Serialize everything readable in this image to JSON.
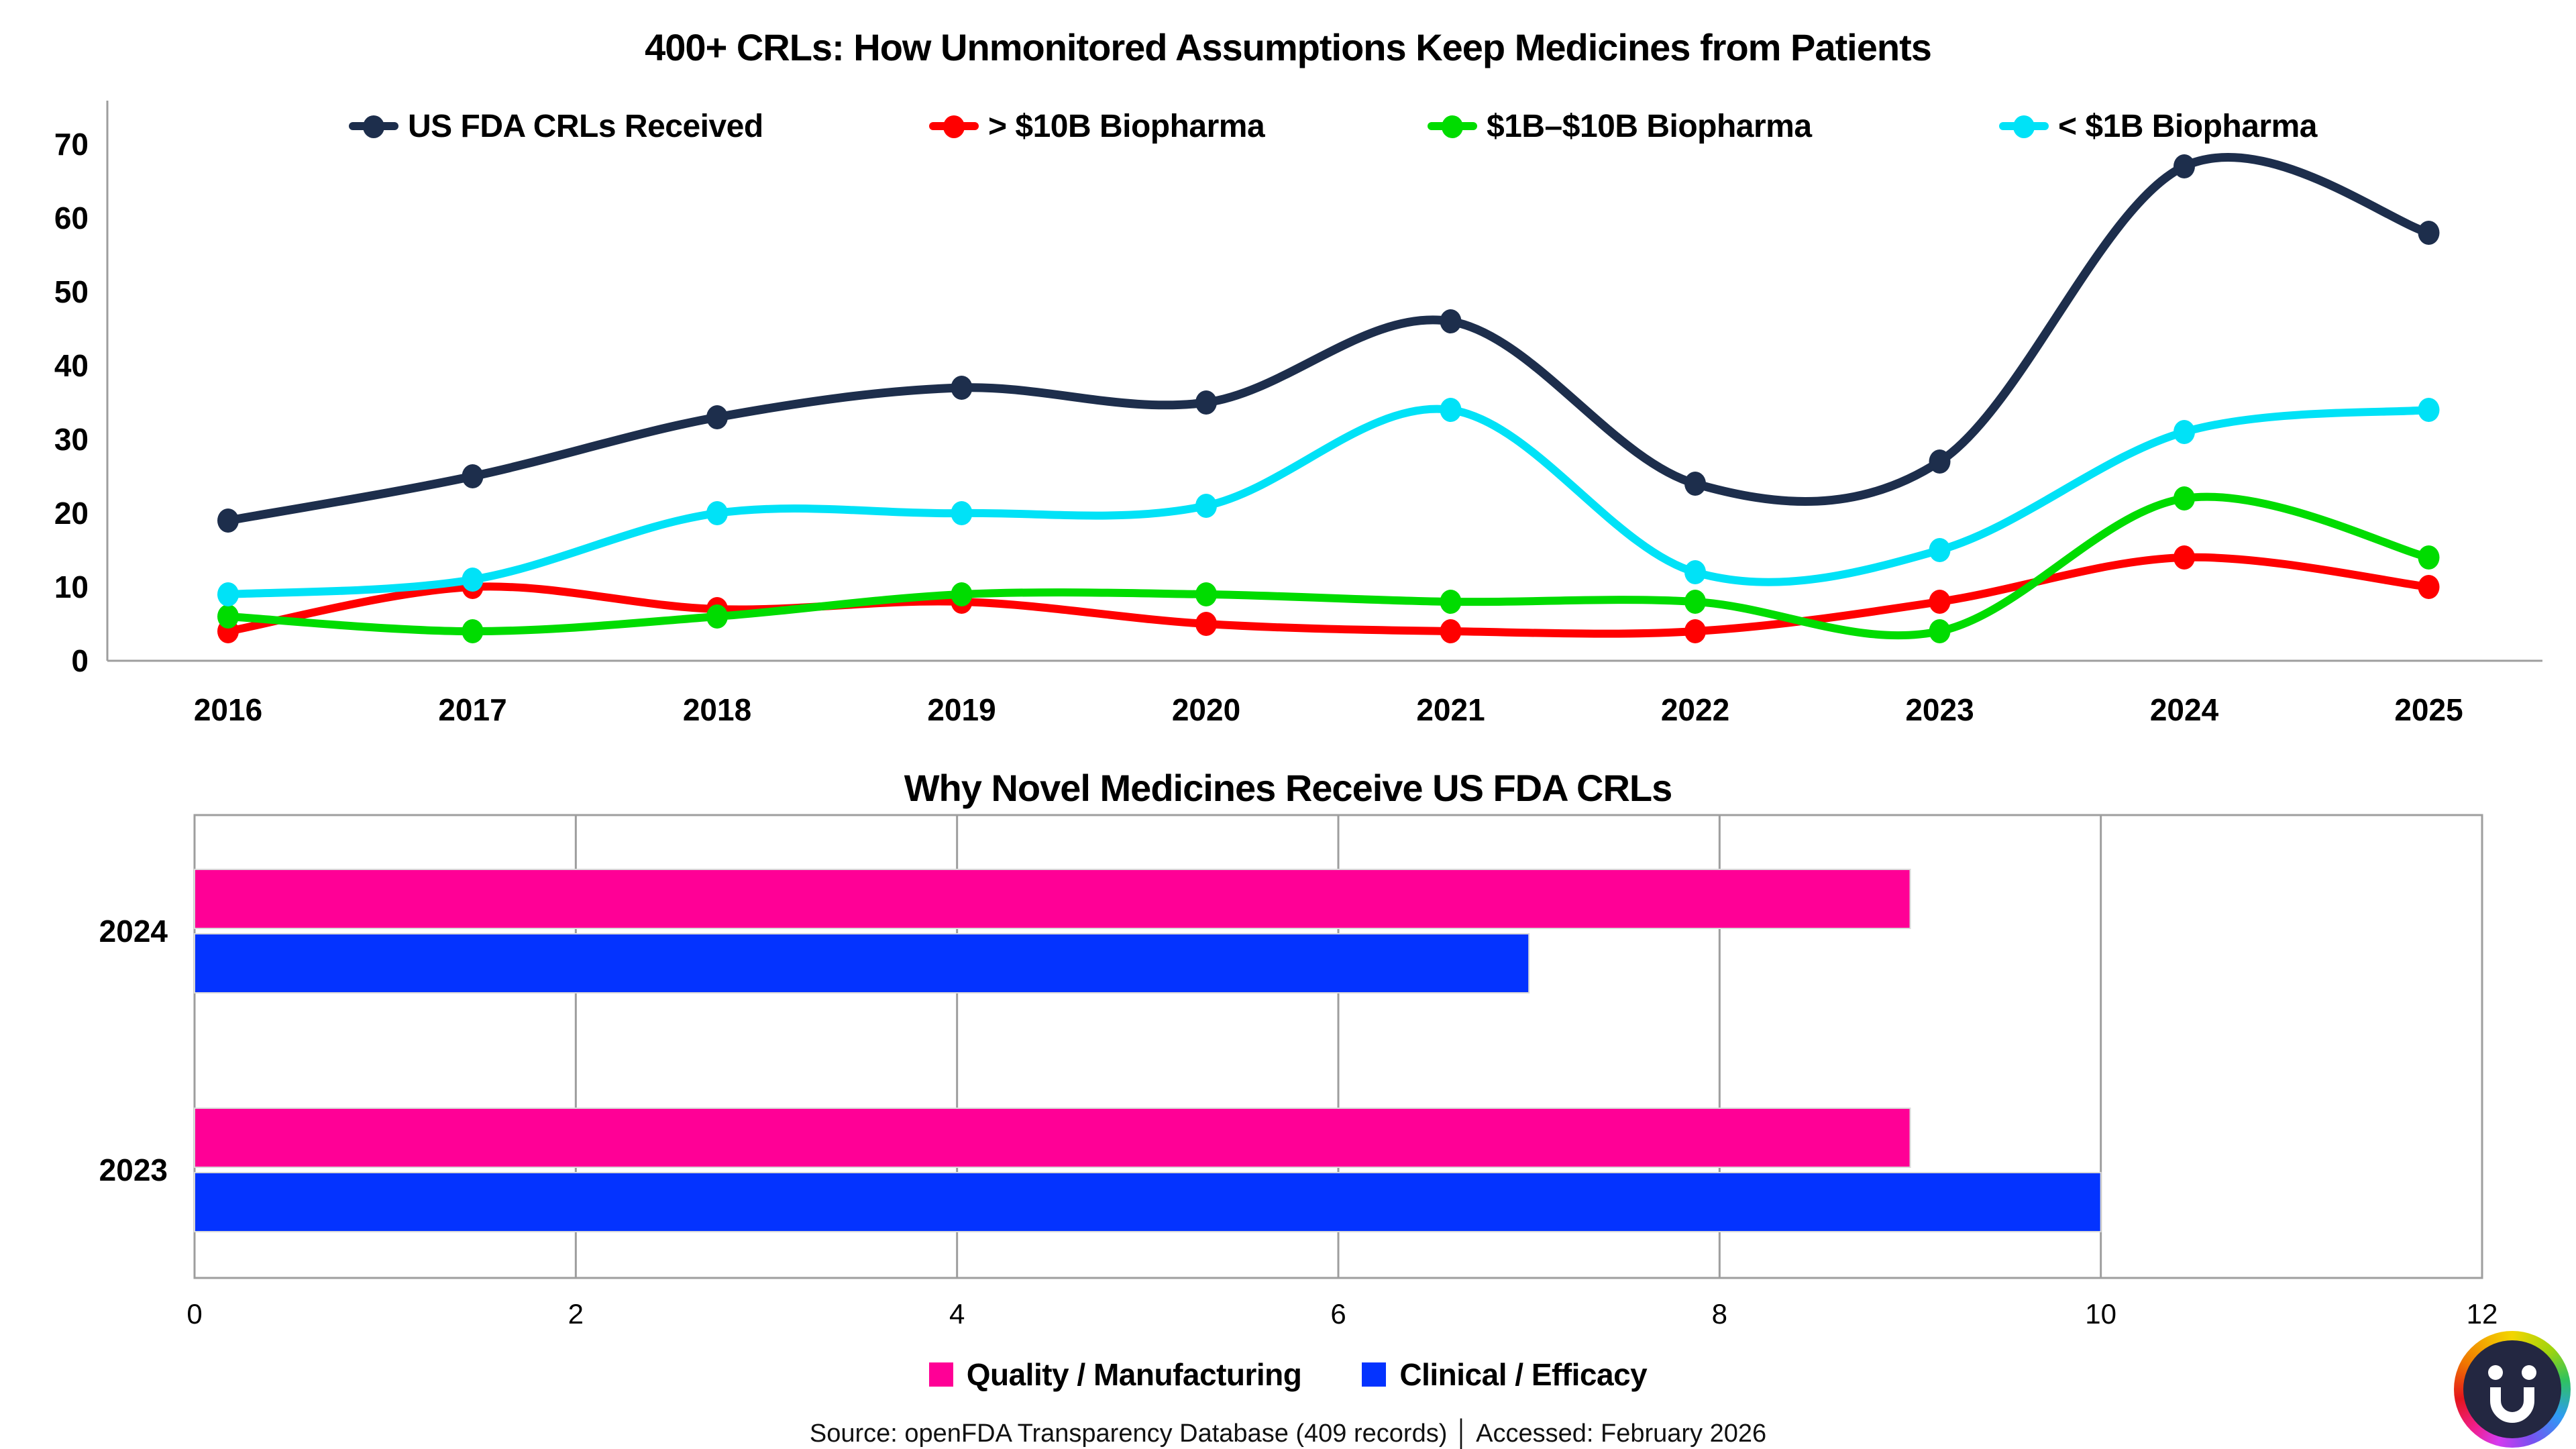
{
  "chart_data": [
    {
      "type": "line",
      "title": "400+ CRLs: How Unmonitored Assumptions Keep Medicines from Patients",
      "categories": [
        "2016",
        "2017",
        "2018",
        "2019",
        "2020",
        "2021",
        "2022",
        "2023",
        "2024",
        "2025"
      ],
      "y_ticks": [
        0,
        10,
        20,
        30,
        40,
        50,
        60,
        70
      ],
      "ylim": [
        0,
        70
      ],
      "grid": false,
      "legend_position": "top",
      "series": [
        {
          "name": "US FDA CRLs Received",
          "color": "#1d2e4c",
          "values": [
            19,
            25,
            33,
            37,
            35,
            46,
            24,
            27,
            67,
            58
          ]
        },
        {
          "name": "> $10B Biopharma",
          "color": "#ff0000",
          "values": [
            4,
            10,
            7,
            8,
            5,
            4,
            4,
            8,
            14,
            10
          ]
        },
        {
          "name": "$1B–$10B Biopharma",
          "color": "#00dc00",
          "values": [
            6,
            4,
            6,
            9,
            9,
            8,
            8,
            4,
            22,
            14
          ]
        },
        {
          "name": "< $1B Biopharma",
          "color": "#00e2f7",
          "values": [
            9,
            11,
            20,
            20,
            21,
            34,
            12,
            15,
            31,
            34
          ]
        }
      ]
    },
    {
      "type": "bar",
      "title": "Why Novel Medicines Receive US FDA CRLs",
      "orientation": "horizontal",
      "categories": [
        "2024",
        "2023"
      ],
      "x_ticks": [
        0,
        2,
        4,
        6,
        8,
        10,
        12
      ],
      "xlim": [
        0,
        12
      ],
      "grid": true,
      "legend_position": "bottom",
      "series": [
        {
          "name": "Quality / Manufacturing",
          "color": "#ff0096",
          "values": [
            9,
            9
          ]
        },
        {
          "name": "Clinical / Efficacy",
          "color": "#0433ff",
          "values": [
            7,
            10
          ]
        }
      ]
    }
  ],
  "source_text": "Source: openFDA Transparency Database (409 records) │ Accessed: February 2026",
  "logo": {
    "name": "rainbow-ring-smiley-u-logo",
    "ring_colors": [
      "#f2d500",
      "#2fc25e",
      "#2e9bf5",
      "#7a4ff0",
      "#f01e8c",
      "#e4161c",
      "#f07800"
    ],
    "face_color": "#232741"
  },
  "axis_color": "#9e9e9e",
  "text_color": "#000000"
}
